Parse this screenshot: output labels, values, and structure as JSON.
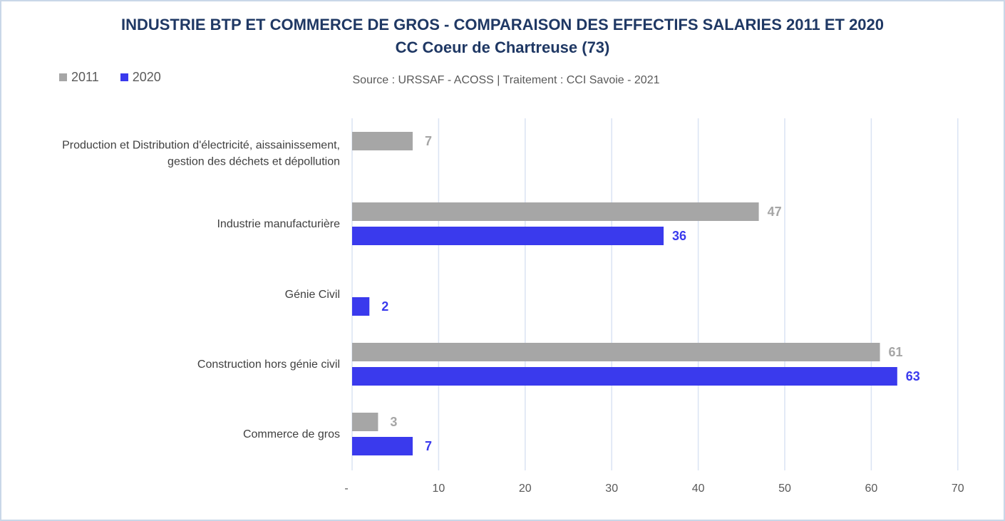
{
  "chart_data": {
    "type": "bar",
    "orientation": "horizontal",
    "title": "INDUSTRIE BTP ET COMMERCE DE GROS - COMPARAISON DES EFFECTIFS SALARIES 2011 ET 2020",
    "subtitle": "CC Coeur de Chartreuse (73)",
    "source": "Source : URSSAF - ACOSS  |  Traitement : CCI Savoie - 2021",
    "categories": [
      [
        "Production et Distribution d'électricité, aissainissement,",
        "gestion des déchets et dépollution"
      ],
      [
        "Industrie manufacturière"
      ],
      [
        "Génie Civil"
      ],
      [
        "Construction hors génie civil"
      ],
      [
        "Commerce de gros"
      ]
    ],
    "series": [
      {
        "name": "2011",
        "color": "#a6a6a6",
        "values": [
          7,
          47,
          null,
          61,
          3
        ]
      },
      {
        "name": "2020",
        "color": "#3a3aed",
        "values": [
          null,
          36,
          2,
          63,
          7
        ]
      }
    ],
    "xlim": [
      0,
      70
    ],
    "xticks": [
      {
        "value": 0,
        "label": "-"
      },
      {
        "value": 10,
        "label": "10"
      },
      {
        "value": 20,
        "label": "20"
      },
      {
        "value": 30,
        "label": "30"
      },
      {
        "value": 40,
        "label": "40"
      },
      {
        "value": 50,
        "label": "50"
      },
      {
        "value": 60,
        "label": "60"
      },
      {
        "value": 70,
        "label": "70"
      }
    ],
    "grid": true,
    "legend_position": "top-left",
    "colors": {
      "title": "#1f3864",
      "grid": "#dae3f3",
      "label_2011": "#a6a6a6",
      "label_2020": "#3a3aed"
    }
  }
}
